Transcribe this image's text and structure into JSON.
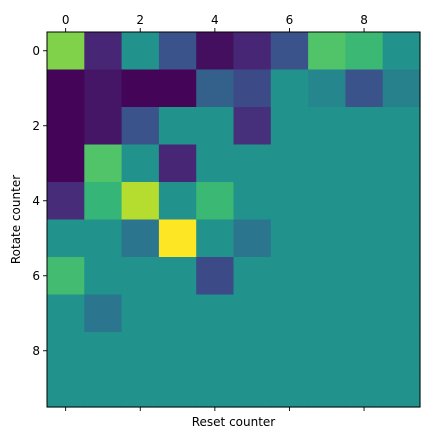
{
  "chart_data": {
    "type": "heatmap",
    "title": "",
    "xlabel": "Reset counter",
    "ylabel": "Rotate counter",
    "rows": 10,
    "cols": 10,
    "x_ticks_top": [
      0,
      2,
      4,
      6,
      8
    ],
    "y_ticks": [
      0,
      2,
      4,
      6,
      8
    ],
    "xlim": [
      -0.5,
      9.5
    ],
    "ylim": [
      9.5,
      -0.5
    ],
    "colormap": "viridis",
    "vmin": -1,
    "vmax": 1,
    "grid": false,
    "values": [
      [
        0.62,
        -0.78,
        0.02,
        -0.48,
        -0.92,
        -0.78,
        -0.48,
        0.45,
        0.35,
        0.02
      ],
      [
        -0.98,
        -0.88,
        -0.98,
        -0.98,
        -0.38,
        -0.55,
        0.02,
        -0.08,
        -0.48,
        -0.12
      ],
      [
        -0.98,
        -0.88,
        -0.48,
        0.02,
        0.02,
        -0.72,
        0.02,
        0.02,
        0.02,
        0.02
      ],
      [
        -0.98,
        0.45,
        0.02,
        -0.78,
        0.02,
        0.02,
        0.02,
        0.02,
        0.02,
        0.02
      ],
      [
        -0.75,
        0.32,
        0.78,
        0.02,
        0.35,
        0.02,
        0.02,
        0.02,
        0.02,
        0.02
      ],
      [
        0.02,
        0.02,
        -0.22,
        1.0,
        0.02,
        -0.22,
        0.02,
        0.02,
        0.02,
        0.02
      ],
      [
        0.38,
        0.02,
        0.02,
        0.02,
        -0.55,
        0.02,
        0.02,
        0.02,
        0.02,
        0.02
      ],
      [
        0.02,
        -0.22,
        0.02,
        0.02,
        0.02,
        0.02,
        0.02,
        0.02,
        0.02,
        0.02
      ],
      [
        0.02,
        0.02,
        0.02,
        0.02,
        0.02,
        0.02,
        0.02,
        0.02,
        0.02,
        0.02
      ],
      [
        0.02,
        0.02,
        0.02,
        0.02,
        0.02,
        0.02,
        0.02,
        0.02,
        0.02,
        0.02
      ]
    ]
  }
}
